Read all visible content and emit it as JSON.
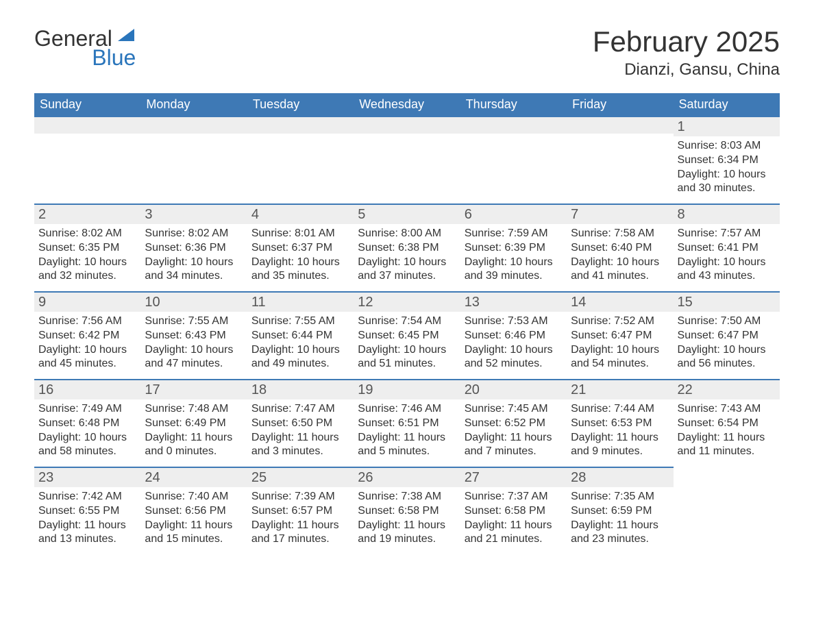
{
  "logo": {
    "word1": "General",
    "word2": "Blue"
  },
  "title": "February 2025",
  "location": "Dianzi, Gansu, China",
  "colors": {
    "header_bg": "#3e79b5",
    "header_text": "#ffffff",
    "rule": "#3e79b5",
    "daynum_bg": "#eeeeee",
    "logo_blue": "#2a75bb",
    "body_text": "#333333"
  },
  "dow": [
    "Sunday",
    "Monday",
    "Tuesday",
    "Wednesday",
    "Thursday",
    "Friday",
    "Saturday"
  ],
  "weeks": [
    [
      null,
      null,
      null,
      null,
      null,
      null,
      {
        "n": "1",
        "sunrise": "Sunrise: 8:03 AM",
        "sunset": "Sunset: 6:34 PM",
        "daylight": "Daylight: 10 hours and 30 minutes."
      }
    ],
    [
      {
        "n": "2",
        "sunrise": "Sunrise: 8:02 AM",
        "sunset": "Sunset: 6:35 PM",
        "daylight": "Daylight: 10 hours and 32 minutes."
      },
      {
        "n": "3",
        "sunrise": "Sunrise: 8:02 AM",
        "sunset": "Sunset: 6:36 PM",
        "daylight": "Daylight: 10 hours and 34 minutes."
      },
      {
        "n": "4",
        "sunrise": "Sunrise: 8:01 AM",
        "sunset": "Sunset: 6:37 PM",
        "daylight": "Daylight: 10 hours and 35 minutes."
      },
      {
        "n": "5",
        "sunrise": "Sunrise: 8:00 AM",
        "sunset": "Sunset: 6:38 PM",
        "daylight": "Daylight: 10 hours and 37 minutes."
      },
      {
        "n": "6",
        "sunrise": "Sunrise: 7:59 AM",
        "sunset": "Sunset: 6:39 PM",
        "daylight": "Daylight: 10 hours and 39 minutes."
      },
      {
        "n": "7",
        "sunrise": "Sunrise: 7:58 AM",
        "sunset": "Sunset: 6:40 PM",
        "daylight": "Daylight: 10 hours and 41 minutes."
      },
      {
        "n": "8",
        "sunrise": "Sunrise: 7:57 AM",
        "sunset": "Sunset: 6:41 PM",
        "daylight": "Daylight: 10 hours and 43 minutes."
      }
    ],
    [
      {
        "n": "9",
        "sunrise": "Sunrise: 7:56 AM",
        "sunset": "Sunset: 6:42 PM",
        "daylight": "Daylight: 10 hours and 45 minutes."
      },
      {
        "n": "10",
        "sunrise": "Sunrise: 7:55 AM",
        "sunset": "Sunset: 6:43 PM",
        "daylight": "Daylight: 10 hours and 47 minutes."
      },
      {
        "n": "11",
        "sunrise": "Sunrise: 7:55 AM",
        "sunset": "Sunset: 6:44 PM",
        "daylight": "Daylight: 10 hours and 49 minutes."
      },
      {
        "n": "12",
        "sunrise": "Sunrise: 7:54 AM",
        "sunset": "Sunset: 6:45 PM",
        "daylight": "Daylight: 10 hours and 51 minutes."
      },
      {
        "n": "13",
        "sunrise": "Sunrise: 7:53 AM",
        "sunset": "Sunset: 6:46 PM",
        "daylight": "Daylight: 10 hours and 52 minutes."
      },
      {
        "n": "14",
        "sunrise": "Sunrise: 7:52 AM",
        "sunset": "Sunset: 6:47 PM",
        "daylight": "Daylight: 10 hours and 54 minutes."
      },
      {
        "n": "15",
        "sunrise": "Sunrise: 7:50 AM",
        "sunset": "Sunset: 6:47 PM",
        "daylight": "Daylight: 10 hours and 56 minutes."
      }
    ],
    [
      {
        "n": "16",
        "sunrise": "Sunrise: 7:49 AM",
        "sunset": "Sunset: 6:48 PM",
        "daylight": "Daylight: 10 hours and 58 minutes."
      },
      {
        "n": "17",
        "sunrise": "Sunrise: 7:48 AM",
        "sunset": "Sunset: 6:49 PM",
        "daylight": "Daylight: 11 hours and 0 minutes."
      },
      {
        "n": "18",
        "sunrise": "Sunrise: 7:47 AM",
        "sunset": "Sunset: 6:50 PM",
        "daylight": "Daylight: 11 hours and 3 minutes."
      },
      {
        "n": "19",
        "sunrise": "Sunrise: 7:46 AM",
        "sunset": "Sunset: 6:51 PM",
        "daylight": "Daylight: 11 hours and 5 minutes."
      },
      {
        "n": "20",
        "sunrise": "Sunrise: 7:45 AM",
        "sunset": "Sunset: 6:52 PM",
        "daylight": "Daylight: 11 hours and 7 minutes."
      },
      {
        "n": "21",
        "sunrise": "Sunrise: 7:44 AM",
        "sunset": "Sunset: 6:53 PM",
        "daylight": "Daylight: 11 hours and 9 minutes."
      },
      {
        "n": "22",
        "sunrise": "Sunrise: 7:43 AM",
        "sunset": "Sunset: 6:54 PM",
        "daylight": "Daylight: 11 hours and 11 minutes."
      }
    ],
    [
      {
        "n": "23",
        "sunrise": "Sunrise: 7:42 AM",
        "sunset": "Sunset: 6:55 PM",
        "daylight": "Daylight: 11 hours and 13 minutes."
      },
      {
        "n": "24",
        "sunrise": "Sunrise: 7:40 AM",
        "sunset": "Sunset: 6:56 PM",
        "daylight": "Daylight: 11 hours and 15 minutes."
      },
      {
        "n": "25",
        "sunrise": "Sunrise: 7:39 AM",
        "sunset": "Sunset: 6:57 PM",
        "daylight": "Daylight: 11 hours and 17 minutes."
      },
      {
        "n": "26",
        "sunrise": "Sunrise: 7:38 AM",
        "sunset": "Sunset: 6:58 PM",
        "daylight": "Daylight: 11 hours and 19 minutes."
      },
      {
        "n": "27",
        "sunrise": "Sunrise: 7:37 AM",
        "sunset": "Sunset: 6:58 PM",
        "daylight": "Daylight: 11 hours and 21 minutes."
      },
      {
        "n": "28",
        "sunrise": "Sunrise: 7:35 AM",
        "sunset": "Sunset: 6:59 PM",
        "daylight": "Daylight: 11 hours and 23 minutes."
      },
      null
    ]
  ]
}
